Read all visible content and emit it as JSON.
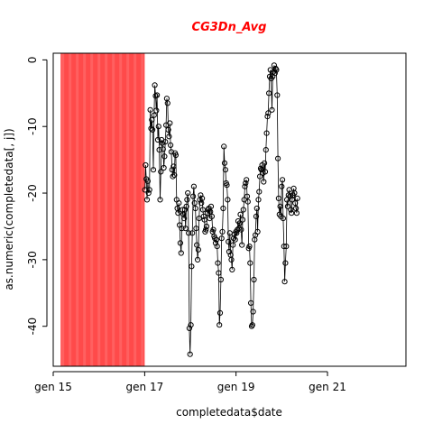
{
  "chart_data": {
    "type": "line",
    "title": "CG3Dn_Avg",
    "xlabel": "completedata$date",
    "ylabel": "as.numeric(completedata[, j])",
    "title_color": "#ff0000",
    "shade_color": "#ff4a4a",
    "line_color": "#000000",
    "marker": "open-circle",
    "grid": false,
    "xlim": [
      "2015-01-01",
      "2022-09-20"
    ],
    "ylim": [
      -46,
      1
    ],
    "shaded_range": [
      "2015-03-01",
      "2017-01-01"
    ],
    "x_ticks": [
      {
        "date": "2015-01-01",
        "label": "gen 15"
      },
      {
        "date": "2017-01-01",
        "label": "gen 17"
      },
      {
        "date": "2019-01-01",
        "label": "gen 19"
      },
      {
        "date": "2021-01-01",
        "label": "gen 21"
      }
    ],
    "y_ticks": [
      {
        "value": 0,
        "label": "0"
      },
      {
        "value": -10,
        "label": "-10"
      },
      {
        "value": -20,
        "label": "-20"
      },
      {
        "value": -30,
        "label": "-30"
      },
      {
        "value": -40,
        "label": "-40"
      }
    ],
    "series": [
      {
        "points": [
          [
            "2017-01-03",
            -19.5
          ],
          [
            "2017-01-08",
            -15.8
          ],
          [
            "2017-01-14",
            -17.9
          ],
          [
            "2017-01-20",
            -21.0
          ],
          [
            "2017-01-26",
            -18.2
          ],
          [
            "2017-02-01",
            -20.0
          ],
          [
            "2017-02-08",
            -19.5
          ],
          [
            "2017-02-15",
            -7.5
          ],
          [
            "2017-02-21",
            -10.3
          ],
          [
            "2017-02-27",
            -9.0
          ],
          [
            "2017-03-05",
            -10.5
          ],
          [
            "2017-03-11",
            -16.5
          ],
          [
            "2017-03-17",
            -8.3
          ],
          [
            "2017-03-23",
            -3.8
          ],
          [
            "2017-03-29",
            -5.4
          ],
          [
            "2017-04-04",
            -7.6
          ],
          [
            "2017-04-10",
            -5.3
          ],
          [
            "2017-04-16",
            -12.0
          ],
          [
            "2017-04-22",
            -10.0
          ],
          [
            "2017-04-28",
            -13.5
          ],
          [
            "2017-05-04",
            -21.0
          ],
          [
            "2017-05-10",
            -16.8
          ],
          [
            "2017-05-16",
            -12.0
          ],
          [
            "2017-05-22",
            -12.5
          ],
          [
            "2017-05-28",
            -13.4
          ],
          [
            "2017-06-03",
            -16.2
          ],
          [
            "2017-06-09",
            -14.5
          ],
          [
            "2017-06-15",
            -12.3
          ],
          [
            "2017-06-21",
            -9.8
          ],
          [
            "2017-06-27",
            -5.8
          ],
          [
            "2017-07-03",
            -6.5
          ],
          [
            "2017-07-09",
            -10.5
          ],
          [
            "2017-07-15",
            -11.5
          ],
          [
            "2017-07-21",
            -9.5
          ],
          [
            "2017-07-27",
            -12.8
          ],
          [
            "2017-08-02",
            -13.8
          ],
          [
            "2017-08-08",
            -16.5
          ],
          [
            "2017-08-14",
            -17.5
          ],
          [
            "2017-08-20",
            -16.0
          ],
          [
            "2017-08-26",
            -17.3
          ],
          [
            "2017-09-01",
            -14.0
          ],
          [
            "2017-09-07",
            -14.3
          ],
          [
            "2017-09-13",
            -21.0
          ],
          [
            "2017-09-19",
            -22.3
          ],
          [
            "2017-09-25",
            -23.0
          ],
          [
            "2017-10-01",
            -21.5
          ],
          [
            "2017-10-07",
            -24.8
          ],
          [
            "2017-10-13",
            -27.5
          ],
          [
            "2017-10-19",
            -29.0
          ],
          [
            "2017-10-25",
            -25.3
          ],
          [
            "2017-10-31",
            -22.5
          ],
          [
            "2017-11-06",
            -23.2
          ],
          [
            "2017-11-12",
            -23.8
          ],
          [
            "2017-11-18",
            -22.5
          ],
          [
            "2017-11-24",
            -25.3
          ],
          [
            "2017-11-30",
            -22.0
          ],
          [
            "2017-12-06",
            -21.0
          ],
          [
            "2017-12-12",
            -20.0
          ],
          [
            "2017-12-18",
            -26.0
          ],
          [
            "2017-12-24",
            -40.3
          ],
          [
            "2017-12-30",
            -44.2
          ],
          [
            "2018-01-05",
            -39.8
          ],
          [
            "2018-01-11",
            -31.0
          ],
          [
            "2018-01-17",
            -26.0
          ],
          [
            "2018-01-23",
            -20.5
          ],
          [
            "2018-01-29",
            -19.0
          ],
          [
            "2018-02-04",
            -21.5
          ],
          [
            "2018-02-10",
            -22.3
          ],
          [
            "2018-02-16",
            -25.3
          ],
          [
            "2018-02-22",
            -27.8
          ],
          [
            "2018-02-28",
            -30.0
          ],
          [
            "2018-03-06",
            -28.5
          ],
          [
            "2018-03-12",
            -23.8
          ],
          [
            "2018-03-18",
            -21.0
          ],
          [
            "2018-03-24",
            -20.3
          ],
          [
            "2018-03-30",
            -21.5
          ],
          [
            "2018-04-05",
            -20.8
          ],
          [
            "2018-04-11",
            -22.5
          ],
          [
            "2018-04-17",
            -23.5
          ],
          [
            "2018-04-23",
            -24.0
          ],
          [
            "2018-04-29",
            -25.8
          ],
          [
            "2018-05-05",
            -25.5
          ],
          [
            "2018-05-11",
            -25.0
          ],
          [
            "2018-05-17",
            -23.0
          ],
          [
            "2018-05-23",
            -22.5
          ],
          [
            "2018-05-29",
            -22.3
          ],
          [
            "2018-06-04",
            -23.8
          ],
          [
            "2018-06-10",
            -22.8
          ],
          [
            "2018-06-16",
            -22.0
          ],
          [
            "2018-06-22",
            -23.5
          ],
          [
            "2018-06-28",
            -25.8
          ],
          [
            "2018-07-04",
            -25.5
          ],
          [
            "2018-07-10",
            -26.5
          ],
          [
            "2018-07-16",
            -26.8
          ],
          [
            "2018-07-22",
            -27.5
          ],
          [
            "2018-07-28",
            -27.0
          ],
          [
            "2018-08-03",
            -28.0
          ],
          [
            "2018-08-09",
            -30.5
          ],
          [
            "2018-08-15",
            -32.0
          ],
          [
            "2018-08-21",
            -39.8
          ],
          [
            "2018-08-27",
            -38.0
          ],
          [
            "2018-09-02",
            -33.0
          ],
          [
            "2018-09-08",
            -26.8
          ],
          [
            "2018-09-14",
            -25.8
          ],
          [
            "2018-09-20",
            -22.3
          ],
          [
            "2018-09-26",
            -13.0
          ],
          [
            "2018-10-02",
            -15.5
          ],
          [
            "2018-10-08",
            -16.5
          ],
          [
            "2018-10-14",
            -18.5
          ],
          [
            "2018-10-20",
            -18.8
          ],
          [
            "2018-10-26",
            -21.0
          ],
          [
            "2018-11-01",
            -27.3
          ],
          [
            "2018-11-07",
            -28.8
          ],
          [
            "2018-11-13",
            -26.0
          ],
          [
            "2018-11-19",
            -29.3
          ],
          [
            "2018-11-25",
            -30.0
          ],
          [
            "2018-12-01",
            -31.5
          ],
          [
            "2018-12-07",
            -27.8
          ],
          [
            "2018-12-13",
            -26.8
          ],
          [
            "2018-12-19",
            -26.2
          ],
          [
            "2018-12-25",
            -27.0
          ],
          [
            "2018-12-31",
            -25.8
          ],
          [
            "2019-01-06",
            -26.0
          ],
          [
            "2019-01-12",
            -25.5
          ],
          [
            "2019-01-18",
            -24.2
          ],
          [
            "2019-01-24",
            -25.3
          ],
          [
            "2019-01-30",
            -24.5
          ],
          [
            "2019-02-05",
            -23.2
          ],
          [
            "2019-02-11",
            -25.5
          ],
          [
            "2019-02-17",
            -27.8
          ],
          [
            "2019-02-23",
            -24.0
          ],
          [
            "2019-03-01",
            -22.5
          ],
          [
            "2019-03-07",
            -21.0
          ],
          [
            "2019-03-13",
            -19.0
          ],
          [
            "2019-03-19",
            -18.5
          ],
          [
            "2019-03-25",
            -18.0
          ],
          [
            "2019-03-31",
            -20.5
          ],
          [
            "2019-04-06",
            -21.3
          ],
          [
            "2019-04-12",
            -28.3
          ],
          [
            "2019-04-18",
            -28.0
          ],
          [
            "2019-04-24",
            -30.5
          ],
          [
            "2019-04-30",
            -36.5
          ],
          [
            "2019-05-06",
            -40.0
          ],
          [
            "2019-05-12",
            -39.8
          ],
          [
            "2019-05-18",
            -37.8
          ],
          [
            "2019-05-24",
            -33.0
          ],
          [
            "2019-05-30",
            -27.0
          ],
          [
            "2019-06-05",
            -26.3
          ],
          [
            "2019-06-11",
            -23.5
          ],
          [
            "2019-06-17",
            -22.3
          ],
          [
            "2019-06-23",
            -25.8
          ],
          [
            "2019-06-29",
            -21.0
          ],
          [
            "2019-07-05",
            -19.8
          ],
          [
            "2019-07-11",
            -17.5
          ],
          [
            "2019-07-17",
            -16.3
          ],
          [
            "2019-07-23",
            -16.5
          ],
          [
            "2019-07-29",
            -15.8
          ],
          [
            "2019-08-04",
            -17.0
          ],
          [
            "2019-08-10",
            -18.3
          ],
          [
            "2019-08-16",
            -15.5
          ],
          [
            "2019-08-22",
            -16.8
          ],
          [
            "2019-08-28",
            -13.5
          ],
          [
            "2019-09-03",
            -11.0
          ],
          [
            "2019-09-09",
            -8.5
          ],
          [
            "2019-09-15",
            -8.0
          ],
          [
            "2019-09-21",
            -5.0
          ],
          [
            "2019-09-27",
            -2.5
          ],
          [
            "2019-10-03",
            -1.5
          ],
          [
            "2019-10-09",
            -2.8
          ],
          [
            "2019-10-15",
            -7.5
          ],
          [
            "2019-10-21",
            -2.5
          ],
          [
            "2019-10-27",
            -1.8
          ],
          [
            "2019-11-02",
            -0.8
          ],
          [
            "2019-11-08",
            -2.0
          ],
          [
            "2019-11-14",
            -1.3
          ],
          [
            "2019-11-20",
            -1.5
          ],
          [
            "2019-11-26",
            -5.3
          ],
          [
            "2019-12-02",
            -14.8
          ],
          [
            "2019-12-08",
            -20.8
          ],
          [
            "2019-12-14",
            -23.2
          ],
          [
            "2019-12-20",
            -22.0
          ],
          [
            "2019-12-26",
            -23.5
          ],
          [
            "2020-01-01",
            -19.0
          ],
          [
            "2020-01-07",
            -18.0
          ],
          [
            "2020-01-13",
            -23.8
          ],
          [
            "2020-01-19",
            -28.0
          ],
          [
            "2020-01-25",
            -33.3
          ],
          [
            "2020-01-31",
            -30.5
          ],
          [
            "2020-02-06",
            -28.0
          ],
          [
            "2020-02-12",
            -21.0
          ],
          [
            "2020-02-18",
            -22.0
          ],
          [
            "2020-02-24",
            -20.3
          ],
          [
            "2020-03-01",
            -19.5
          ],
          [
            "2020-03-07",
            -20.5
          ],
          [
            "2020-03-13",
            -22.5
          ],
          [
            "2020-03-19",
            -23.0
          ],
          [
            "2020-03-25",
            -21.0
          ],
          [
            "2020-03-31",
            -20.3
          ],
          [
            "2020-04-06",
            -19.3
          ],
          [
            "2020-04-12",
            -20.0
          ],
          [
            "2020-04-18",
            -21.5
          ],
          [
            "2020-04-24",
            -22.3
          ],
          [
            "2020-04-30",
            -23.0
          ],
          [
            "2020-05-06",
            -20.8
          ]
        ]
      }
    ]
  }
}
